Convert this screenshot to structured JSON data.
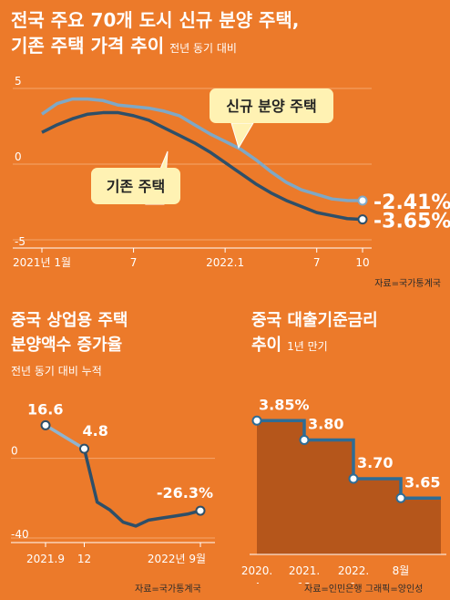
{
  "chart_data": [
    {
      "type": "line",
      "title_line1": "전국 주요 70개 도시 신규 분양 주택,",
      "title_line2": "기존 주택 가격 추이",
      "subtitle": "전년 동기 대비",
      "x_ticks": [
        "2021년 1월",
        "7",
        "2022.1",
        "7",
        "10"
      ],
      "y_ticks": [
        "5",
        "0",
        "-5"
      ],
      "ylim": [
        -5,
        5
      ],
      "series": [
        {
          "name": "신규 분양 주택",
          "color": "#7fa8c6",
          "x": [
            0,
            1,
            2,
            3,
            4,
            5,
            6,
            7,
            8,
            9,
            10,
            11,
            12,
            13,
            14,
            15,
            16,
            17,
            18,
            19,
            20,
            21
          ],
          "values": [
            3.3,
            4.0,
            4.3,
            4.3,
            4.2,
            3.9,
            3.8,
            3.7,
            3.5,
            3.2,
            2.6,
            2.0,
            1.5,
            1.0,
            0.3,
            -0.5,
            -1.2,
            -1.7,
            -2.0,
            -2.3,
            -2.4,
            -2.41
          ],
          "end_label": "-2.41%"
        },
        {
          "name": "기존 주택",
          "color": "#2e4f68",
          "x": [
            0,
            1,
            2,
            3,
            4,
            5,
            6,
            7,
            8,
            9,
            10,
            11,
            12,
            13,
            14,
            15,
            16,
            17,
            18,
            19,
            20,
            21
          ],
          "values": [
            2.1,
            2.6,
            3.0,
            3.3,
            3.4,
            3.4,
            3.2,
            2.9,
            2.4,
            1.9,
            1.4,
            0.8,
            0.1,
            -0.6,
            -1.3,
            -1.9,
            -2.4,
            -2.8,
            -3.2,
            -3.4,
            -3.6,
            -3.65
          ],
          "end_label": "-3.65%"
        }
      ],
      "source": "자료=국가통계국"
    },
    {
      "type": "line",
      "title_line1": "중국 상업용 주택",
      "title_line2": "분양액수 증가율",
      "subtitle": "전년 동기 대비 누적",
      "x_ticks": [
        "2021.9",
        "12",
        "2022년 9월"
      ],
      "y_ticks": [
        "0",
        "-40"
      ],
      "ylim": [
        -40,
        25
      ],
      "series": [
        {
          "name": "",
          "x": [
            0,
            1,
            2,
            3,
            4,
            5,
            6,
            7,
            8,
            9,
            10,
            11,
            12
          ],
          "values": [
            16.6,
            null,
            null,
            4.8,
            -22,
            -26,
            -32,
            -34,
            -31,
            -30,
            -29,
            -28,
            -26.3
          ]
        }
      ],
      "point_labels": [
        "16.6",
        "4.8",
        "-26.3%"
      ],
      "source": "자료=국가통계국"
    },
    {
      "type": "line",
      "step": true,
      "title_line1": "중국 대출기준금리",
      "title_line2": "추이",
      "subtitle": "1년 만기",
      "x_ticks": [
        "2020.\n4",
        "2021.\n12",
        "2022.\n1",
        "8월"
      ],
      "series": [
        {
          "name": "",
          "values": [
            3.85,
            3.8,
            3.7,
            3.65
          ]
        }
      ],
      "point_labels": [
        "3.85%",
        "3.80",
        "3.70",
        "3.65"
      ],
      "source": "자료=인민은행",
      "credit": "그래픽=양인성"
    }
  ]
}
